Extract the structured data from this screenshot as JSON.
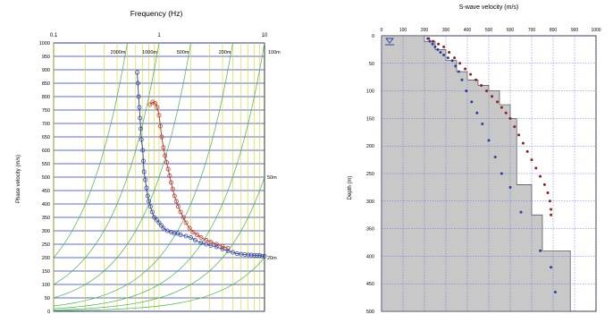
{
  "chart_data": [
    {
      "type": "scatter",
      "title": "Frequency (Hz)",
      "ylabel": "Phase velocity (m/s)",
      "xlabel": "",
      "x_scale": "log",
      "xlim": [
        0.1,
        10
      ],
      "ylim": [
        0,
        1000
      ],
      "x_ticks": [
        0.1,
        1,
        10
      ],
      "x_tick_labels": [
        "0.1",
        "1",
        "10"
      ],
      "y_ticks": [
        0,
        50,
        100,
        150,
        200,
        250,
        300,
        350,
        400,
        450,
        500,
        550,
        600,
        650,
        700,
        750,
        800,
        850,
        900,
        950,
        1000
      ],
      "y_tick_labels": [
        "0",
        "50",
        "100",
        "150",
        "200",
        "250",
        "300",
        "350",
        "400",
        "450",
        "500",
        "550",
        "600",
        "650",
        "700",
        "750",
        "800",
        "850",
        "900",
        "950",
        "1000"
      ],
      "grid": true,
      "wavelength_lines": [
        {
          "label": "2000m",
          "wavelength": 2000
        },
        {
          "label": "1000m",
          "wavelength": 1000
        },
        {
          "label": "500m",
          "wavelength": 500
        },
        {
          "label": "200m",
          "wavelength": 200
        },
        {
          "label": "100m",
          "wavelength": 100
        },
        {
          "label": "50m",
          "wavelength": 50
        },
        {
          "label": "20m",
          "wavelength": 20
        }
      ],
      "series": [
        {
          "name": "",
          "color": "#2b3f9e",
          "points": [
            [
              0.62,
              890
            ],
            [
              0.63,
              850
            ],
            [
              0.64,
              800
            ],
            [
              0.65,
              760
            ],
            [
              0.66,
              720
            ],
            [
              0.67,
              680
            ],
            [
              0.68,
              640
            ],
            [
              0.7,
              600
            ],
            [
              0.71,
              560
            ],
            [
              0.72,
              520
            ],
            [
              0.74,
              490
            ],
            [
              0.76,
              460
            ],
            [
              0.78,
              430
            ],
            [
              0.8,
              410
            ],
            [
              0.83,
              390
            ],
            [
              0.86,
              370
            ],
            [
              0.9,
              350
            ],
            [
              0.95,
              340
            ],
            [
              1.0,
              330
            ],
            [
              1.05,
              320
            ],
            [
              1.1,
              310
            ],
            [
              1.2,
              300
            ],
            [
              1.3,
              295
            ],
            [
              1.4,
              290
            ],
            [
              1.5,
              290
            ],
            [
              1.6,
              285
            ],
            [
              1.8,
              280
            ],
            [
              2.0,
              275
            ],
            [
              2.2,
              265
            ],
            [
              2.5,
              255
            ],
            [
              2.8,
              250
            ],
            [
              3.1,
              245
            ],
            [
              3.5,
              240
            ],
            [
              4.0,
              232
            ],
            [
              4.5,
              225
            ],
            [
              5.0,
              220
            ],
            [
              5.5,
              215
            ],
            [
              6.0,
              213
            ],
            [
              6.5,
              212
            ],
            [
              7.0,
              210
            ],
            [
              7.5,
              210
            ],
            [
              8.0,
              209
            ],
            [
              8.5,
              209
            ],
            [
              9.0,
              208
            ],
            [
              9.5,
              206
            ],
            [
              10.0,
              205
            ]
          ]
        },
        {
          "name": "",
          "color": "#b83228",
          "points": [
            [
              0.82,
              770
            ],
            [
              0.87,
              780
            ],
            [
              0.92,
              775
            ],
            [
              0.96,
              760
            ],
            [
              1.0,
              730
            ],
            [
              1.03,
              690
            ],
            [
              1.06,
              650
            ],
            [
              1.1,
              610
            ],
            [
              1.14,
              580
            ],
            [
              1.18,
              555
            ],
            [
              1.22,
              530
            ],
            [
              1.26,
              505
            ],
            [
              1.3,
              480
            ],
            [
              1.35,
              455
            ],
            [
              1.4,
              430
            ],
            [
              1.46,
              410
            ],
            [
              1.52,
              390
            ],
            [
              1.6,
              370
            ],
            [
              1.7,
              350
            ],
            [
              1.8,
              330
            ],
            [
              1.95,
              310
            ],
            [
              2.1,
              295
            ],
            [
              2.3,
              285
            ],
            [
              2.5,
              275
            ],
            [
              2.8,
              265
            ],
            [
              3.1,
              258
            ],
            [
              3.5,
              250
            ],
            [
              4.0,
              242
            ],
            [
              4.5,
              235
            ]
          ]
        }
      ]
    },
    {
      "type": "scatter",
      "title": "S-wave velocity (m/s)",
      "ylabel": "Depth (m)",
      "xlabel": "",
      "xlim": [
        0,
        1000
      ],
      "ylim": [
        0,
        500
      ],
      "y_inverted": true,
      "x_axis_position": "top",
      "x_ticks": [
        0,
        100,
        200,
        300,
        400,
        500,
        600,
        700,
        800,
        900,
        1000
      ],
      "x_tick_labels": [
        "0",
        "100",
        "200",
        "300",
        "400",
        "500",
        "600",
        "700",
        "800",
        "900",
        "1000"
      ],
      "y_ticks": [
        0,
        50,
        100,
        150,
        200,
        250,
        300,
        350,
        400,
        450,
        500
      ],
      "y_tick_labels": [
        "0",
        "50",
        "100",
        "150",
        "200",
        "250",
        "300",
        "350",
        "400",
        "450",
        "500"
      ],
      "grid": true,
      "profile_color": "#c8c8c8",
      "velocity_profile": [
        {
          "top": 0,
          "bottom": 10,
          "velocity": 200
        },
        {
          "top": 10,
          "bottom": 25,
          "velocity": 250
        },
        {
          "top": 25,
          "bottom": 45,
          "velocity": 300
        },
        {
          "top": 45,
          "bottom": 65,
          "velocity": 350
        },
        {
          "top": 65,
          "bottom": 80,
          "velocity": 400
        },
        {
          "top": 80,
          "bottom": 90,
          "velocity": 450
        },
        {
          "top": 90,
          "bottom": 100,
          "velocity": 500
        },
        {
          "top": 100,
          "bottom": 125,
          "velocity": 550
        },
        {
          "top": 125,
          "bottom": 150,
          "velocity": 600
        },
        {
          "top": 150,
          "bottom": 270,
          "velocity": 630
        },
        {
          "top": 270,
          "bottom": 325,
          "velocity": 700
        },
        {
          "top": 325,
          "bottom": 390,
          "velocity": 750
        },
        {
          "top": 390,
          "bottom": 500,
          "velocity": 880
        }
      ],
      "series": [
        {
          "name": "",
          "color": "#2b3f9e",
          "points": [
            [
              215,
              5
            ],
            [
              225,
              10
            ],
            [
              238,
              15
            ],
            [
              250,
              20
            ],
            [
              262,
              25
            ],
            [
              275,
              30
            ],
            [
              290,
              35
            ],
            [
              310,
              40
            ],
            [
              330,
              45
            ],
            [
              345,
              55
            ],
            [
              360,
              65
            ],
            [
              375,
              80
            ],
            [
              395,
              100
            ],
            [
              420,
              120
            ],
            [
              445,
              140
            ],
            [
              470,
              160
            ],
            [
              500,
              190
            ],
            [
              530,
              220
            ],
            [
              560,
              250
            ],
            [
              600,
              275
            ],
            [
              650,
              320
            ],
            [
              740,
              390
            ],
            [
              790,
              420
            ],
            [
              810,
              465
            ]
          ]
        },
        {
          "name": "",
          "color": "#8b2020",
          "points": [
            [
              220,
              5
            ],
            [
              240,
              10
            ],
            [
              265,
              15
            ],
            [
              290,
              20
            ],
            [
              315,
              30
            ],
            [
              340,
              40
            ],
            [
              365,
              50
            ],
            [
              390,
              60
            ],
            [
              415,
              70
            ],
            [
              440,
              80
            ],
            [
              465,
              90
            ],
            [
              490,
              100
            ],
            [
              515,
              110
            ],
            [
              540,
              120
            ],
            [
              560,
              130
            ],
            [
              580,
              140
            ],
            [
              600,
              150
            ],
            [
              620,
              165
            ],
            [
              640,
              180
            ],
            [
              660,
              195
            ],
            [
              680,
              210
            ],
            [
              700,
              225
            ],
            [
              720,
              240
            ],
            [
              740,
              255
            ],
            [
              760,
              270
            ],
            [
              775,
              285
            ],
            [
              785,
              300
            ],
            [
              790,
              315
            ],
            [
              790,
              325
            ]
          ]
        }
      ]
    }
  ]
}
